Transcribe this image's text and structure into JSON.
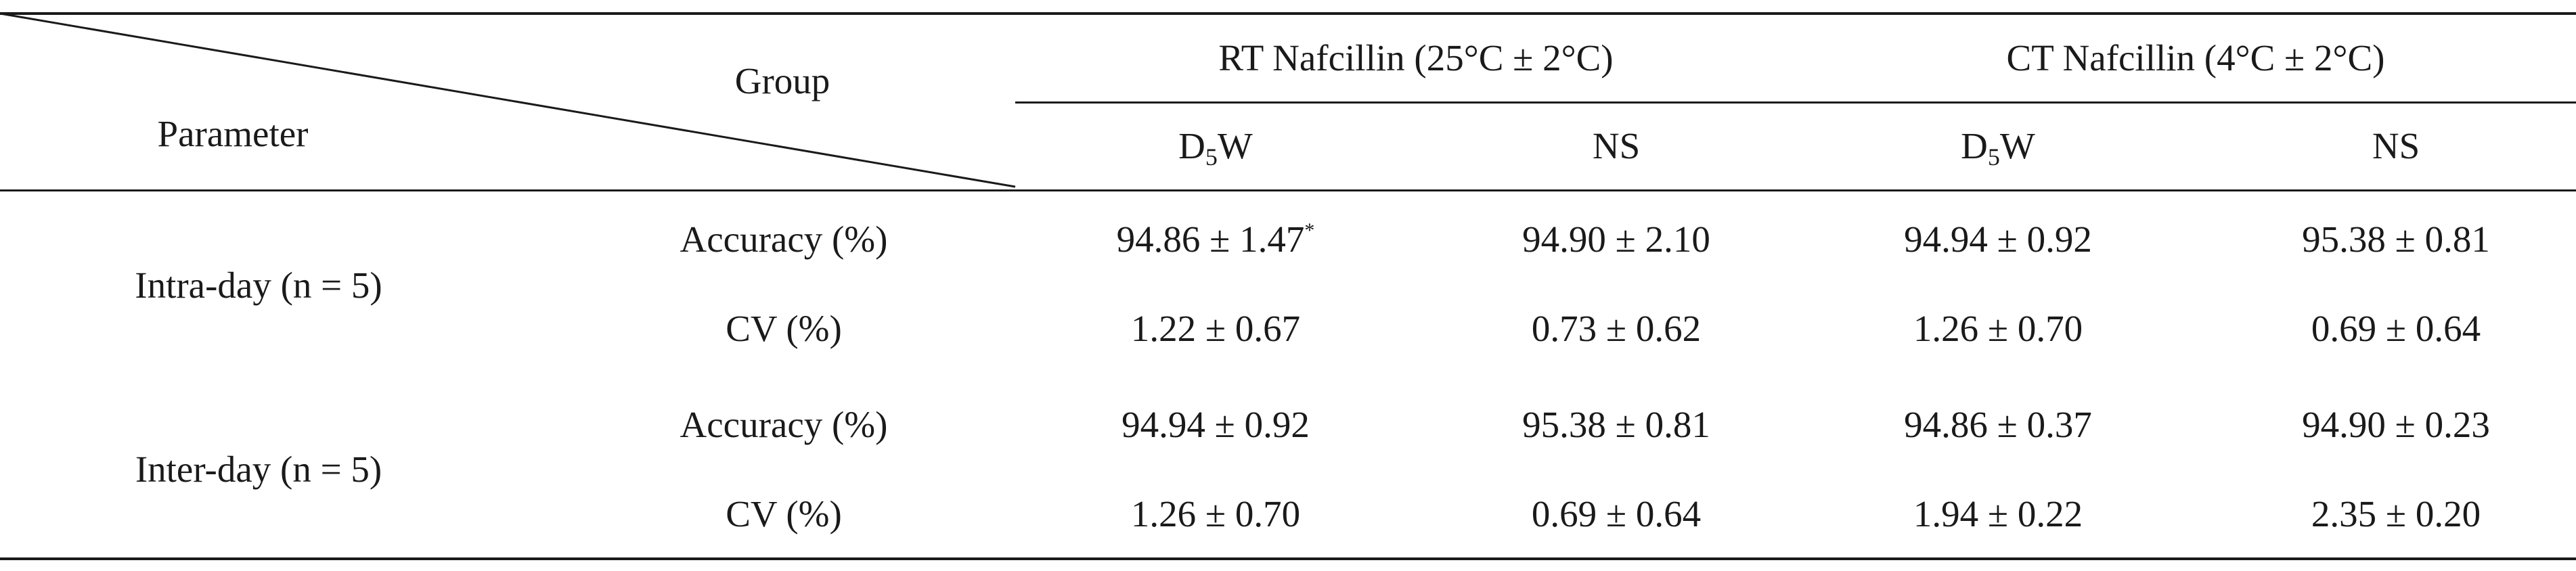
{
  "header": {
    "group": "Group",
    "parameter": "Parameter",
    "rt_group": "RT Nafcillin (25°C ± 2°C)",
    "ct_group": "CT Nafcillin (4°C ± 2°C)",
    "sub_cols": [
      {
        "main": "D",
        "sub": "5",
        "rest": "W"
      },
      {
        "main": "NS",
        "sub": "",
        "rest": ""
      },
      {
        "main": "D",
        "sub": "5",
        "rest": "W"
      },
      {
        "main": "NS",
        "sub": "",
        "rest": ""
      }
    ]
  },
  "rows": [
    {
      "parameter": "Intra-day (n = 5)",
      "measures": [
        {
          "label": "Accuracy (%)",
          "values": [
            "94.86 ± 1.47",
            "94.90 ± 2.10",
            "94.94 ± 0.92",
            "95.38 ± 0.81"
          ],
          "mark": "*"
        },
        {
          "label": "CV (%)",
          "values": [
            "1.22 ± 0.67",
            "0.73 ± 0.62",
            "1.26 ± 0.70",
            "0.69 ± 0.64"
          ]
        }
      ]
    },
    {
      "parameter": "Inter-day (n = 5)",
      "measures": [
        {
          "label": "Accuracy (%)",
          "values": [
            "94.94 ± 0.92",
            "95.38 ± 0.81",
            "94.86 ± 0.37",
            "94.90 ± 0.23"
          ]
        },
        {
          "label": "CV (%)",
          "values": [
            "1.26 ± 0.70",
            "0.69 ± 0.64",
            "1.94 ± 0.22",
            "2.35 ± 0.20"
          ]
        }
      ]
    }
  ]
}
